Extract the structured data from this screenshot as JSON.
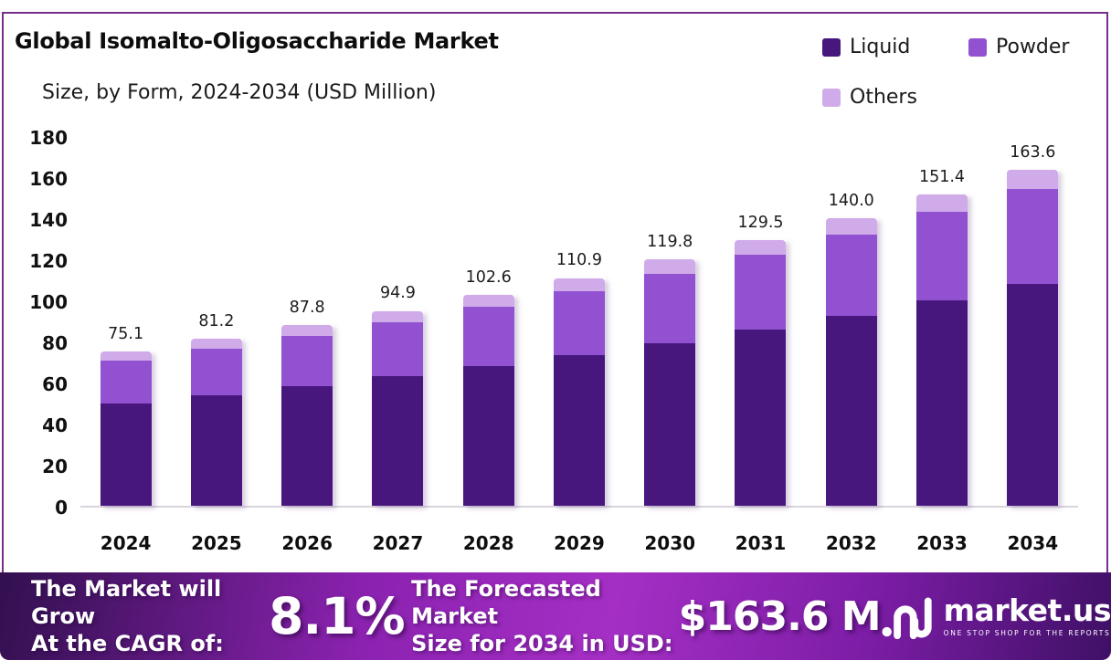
{
  "header": {
    "title": "Global Isomalto-Oligosaccharide Market",
    "subtitle": "Size, by Form, 2024-2034 (USD Million)"
  },
  "legend": {
    "items": [
      {
        "label": "Liquid",
        "color": "#47177e"
      },
      {
        "label": "Powder",
        "color": "#9251d1"
      },
      {
        "label": "Others",
        "color": "#d0abe9"
      }
    ]
  },
  "chart_data": {
    "type": "bar",
    "stacked": true,
    "title": "Global Isomalto-Oligosaccharide Market",
    "subtitle": "Size, by Form, 2024-2034 (USD Million)",
    "categories": [
      "2024",
      "2025",
      "2026",
      "2027",
      "2028",
      "2029",
      "2030",
      "2031",
      "2032",
      "2033",
      "2034"
    ],
    "series": [
      {
        "name": "Liquid",
        "color": "#47177e",
        "values": [
          49.9,
          53.9,
          58.2,
          62.9,
          68.0,
          73.4,
          79.3,
          85.7,
          92.6,
          100.1,
          108.2
        ]
      },
      {
        "name": "Powder",
        "color": "#9251d1",
        "values": [
          20.9,
          22.7,
          24.6,
          26.6,
          28.8,
          31.2,
          33.7,
          36.5,
          39.5,
          42.8,
          46.2
        ]
      },
      {
        "name": "Others",
        "color": "#d0abe9",
        "values": [
          4.3,
          4.6,
          5.0,
          5.4,
          5.8,
          6.3,
          6.8,
          7.3,
          7.9,
          8.5,
          9.2
        ]
      }
    ],
    "totals": [
      75.1,
      81.2,
      87.8,
      94.9,
      102.6,
      110.9,
      119.8,
      129.5,
      140.0,
      151.4,
      163.6
    ],
    "total_labels": [
      "75.1",
      "81.2",
      "87.8",
      "94.9",
      "102.6",
      "110.9",
      "119.8",
      "129.5",
      "140.0",
      "151.4",
      "163.6"
    ],
    "xlabel": "",
    "ylabel": "",
    "ylim": [
      0,
      180
    ],
    "y_ticks": [
      180,
      160,
      140,
      120,
      100,
      80,
      60,
      40,
      20,
      0
    ],
    "grid": false,
    "legend_position": "top-right"
  },
  "banner": {
    "cagr_line1": "The Market will Grow",
    "cagr_line2": "At the CAGR of:",
    "cagr_value": "8.1%",
    "forecast_line1": "The Forecasted Market",
    "forecast_line2": "Size for 2034 in USD:",
    "forecast_value": "$163.6 M",
    "brand_name": "market.us",
    "brand_tagline": "ONE STOP SHOP FOR THE REPORTS"
  },
  "colors": {
    "card_border": "#772d8b",
    "axis_line": "#d9d4de",
    "banner_dark": "#32104f",
    "banner_bright": "#a52fc5"
  }
}
